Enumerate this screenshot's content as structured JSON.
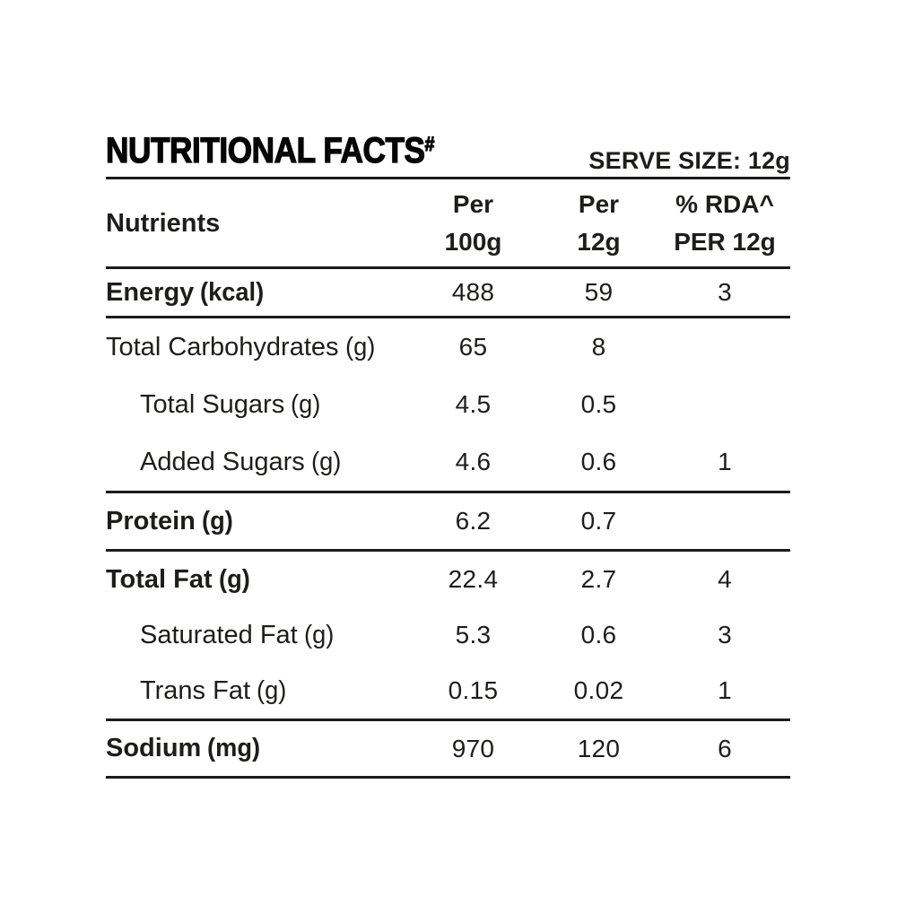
{
  "colors": {
    "text": "#1d1d1b",
    "rule": "#1b1b19",
    "title": "#050505",
    "background": "#ffffff"
  },
  "header": {
    "title": "NUTRITIONAL FACTS",
    "title_superscript": "#",
    "serve_size_label": "SERVE SIZE: 12g"
  },
  "table": {
    "columns": [
      {
        "id": "nutrients",
        "lines": [
          "Nutrients"
        ]
      },
      {
        "id": "per_100g",
        "lines": [
          "Per",
          "100g"
        ]
      },
      {
        "id": "per_12g",
        "lines": [
          "Per",
          "12g"
        ]
      },
      {
        "id": "rda_per_12g",
        "lines": [
          "% RDA^",
          "PER 12g"
        ]
      }
    ],
    "sections": [
      {
        "rows": [
          {
            "name": "Energy",
            "unit": "(kcal)",
            "bold": true,
            "indent": false,
            "per_100g": "488",
            "per_12g": "59",
            "rda": "3"
          }
        ]
      },
      {
        "rows": [
          {
            "name": "Total Carbohydrates",
            "unit": "(g)",
            "bold": false,
            "indent": false,
            "per_100g": "65",
            "per_12g": "8",
            "rda": ""
          },
          {
            "name": "Total Sugars",
            "unit": "(g)",
            "bold": false,
            "indent": true,
            "per_100g": "4.5",
            "per_12g": "0.5",
            "rda": ""
          },
          {
            "name": "Added Sugars",
            "unit": "(g)",
            "bold": false,
            "indent": true,
            "per_100g": "4.6",
            "per_12g": "0.6",
            "rda": "1"
          }
        ]
      },
      {
        "rows": [
          {
            "name": "Protein",
            "unit": "(g)",
            "bold": true,
            "indent": false,
            "per_100g": "6.2",
            "per_12g": "0.7",
            "rda": ""
          }
        ]
      },
      {
        "rows": [
          {
            "name": "Total Fat",
            "unit": "(g)",
            "bold": true,
            "indent": false,
            "per_100g": "22.4",
            "per_12g": "2.7",
            "rda": "4"
          },
          {
            "name": "Saturated Fat",
            "unit": "(g)",
            "bold": false,
            "indent": true,
            "per_100g": "5.3",
            "per_12g": "0.6",
            "rda": "3"
          },
          {
            "name": "Trans Fat",
            "unit": "(g)",
            "bold": false,
            "indent": true,
            "per_100g": "0.15",
            "per_12g": "0.02",
            "rda": "1"
          }
        ]
      },
      {
        "rows": [
          {
            "name": "Sodium",
            "unit": "(mg)",
            "bold": true,
            "indent": false,
            "per_100g": "970",
            "per_12g": "120",
            "rda": "6"
          }
        ]
      }
    ]
  }
}
